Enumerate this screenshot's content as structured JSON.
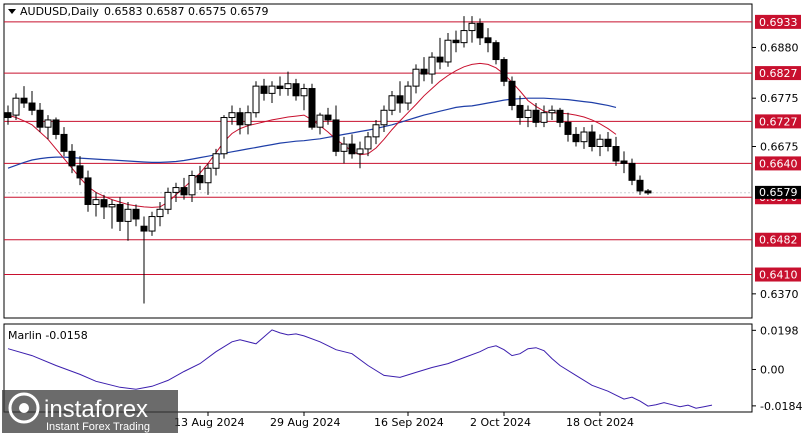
{
  "header": {
    "symbol_title": "AUDUSD,Daily",
    "ohlc": "0.6583 0.6587 0.6575 0.6579"
  },
  "colors": {
    "bull_fill": "#ffffff",
    "bear_fill": "#000000",
    "ma_fast": "#c8102e",
    "ma_slow": "#1f3fa8",
    "level_line": "#c8102e",
    "badge_bg": "#c8102e",
    "marlin_line": "#3c1fae"
  },
  "chart_data": [
    {
      "type": "candlestick",
      "title": "AUDUSD,Daily",
      "ylim": [
        0.632,
        0.697
      ],
      "y_ticks": [
        "0.6880",
        "0.6775",
        "0.6675",
        "0.6370"
      ],
      "x_ticks": [
        "13 Aug 2024",
        "29 Aug 2024",
        "16 Sep 2024",
        "2 Oct 2024",
        "18 Oct 2024"
      ],
      "x_tick_index": [
        25,
        37,
        50,
        62,
        74
      ],
      "levels": [
        {
          "label": "0.6933",
          "value": 0.6933
        },
        {
          "label": "0.6827",
          "value": 0.6827
        },
        {
          "label": "0.6727",
          "value": 0.6727
        },
        {
          "label": "0.6640",
          "value": 0.664
        },
        {
          "label": "0.6570",
          "value": 0.657
        },
        {
          "label": "0.6482",
          "value": 0.6482
        },
        {
          "label": "0.6410",
          "value": 0.641
        }
      ],
      "current_price": {
        "label": "0.6579",
        "value": 0.6579
      },
      "candles": [
        [
          0.6745,
          0.676,
          0.672,
          0.6735
        ],
        [
          0.674,
          0.6785,
          0.673,
          0.6775
        ],
        [
          0.6775,
          0.68,
          0.6755,
          0.6765
        ],
        [
          0.6765,
          0.679,
          0.674,
          0.675
        ],
        [
          0.675,
          0.6765,
          0.6705,
          0.6715
        ],
        [
          0.6715,
          0.674,
          0.669,
          0.673
        ],
        [
          0.673,
          0.6735,
          0.669,
          0.67
        ],
        [
          0.67,
          0.6715,
          0.6655,
          0.6665
        ],
        [
          0.6665,
          0.668,
          0.662,
          0.6635
        ],
        [
          0.6635,
          0.6655,
          0.6595,
          0.661
        ],
        [
          0.661,
          0.6625,
          0.654,
          0.6555
        ],
        [
          0.6555,
          0.658,
          0.653,
          0.6565
        ],
        [
          0.6565,
          0.6575,
          0.6525,
          0.655
        ],
        [
          0.655,
          0.6565,
          0.6505,
          0.6555
        ],
        [
          0.6555,
          0.657,
          0.65,
          0.652
        ],
        [
          0.652,
          0.656,
          0.648,
          0.6545
        ],
        [
          0.6545,
          0.6555,
          0.651,
          0.6525
        ],
        [
          0.651,
          0.653,
          0.635,
          0.65
        ],
        [
          0.65,
          0.654,
          0.649,
          0.653
        ],
        [
          0.653,
          0.656,
          0.651,
          0.6545
        ],
        [
          0.6545,
          0.659,
          0.6535,
          0.658
        ],
        [
          0.658,
          0.66,
          0.656,
          0.659
        ],
        [
          0.659,
          0.661,
          0.6565,
          0.6575
        ],
        [
          0.6575,
          0.6625,
          0.656,
          0.6615
        ],
        [
          0.6615,
          0.6635,
          0.6585,
          0.66
        ],
        [
          0.66,
          0.664,
          0.6575,
          0.663
        ],
        [
          0.663,
          0.667,
          0.6615,
          0.666
        ],
        [
          0.666,
          0.674,
          0.665,
          0.6735
        ],
        [
          0.6735,
          0.676,
          0.672,
          0.6745
        ],
        [
          0.6745,
          0.6755,
          0.67,
          0.672
        ],
        [
          0.672,
          0.676,
          0.67,
          0.6745
        ],
        [
          0.6745,
          0.681,
          0.6735,
          0.68
        ],
        [
          0.68,
          0.6815,
          0.677,
          0.6785
        ],
        [
          0.6785,
          0.681,
          0.6765,
          0.68
        ],
        [
          0.68,
          0.682,
          0.678,
          0.6795
        ],
        [
          0.6795,
          0.683,
          0.678,
          0.6805
        ],
        [
          0.6805,
          0.6815,
          0.677,
          0.678
        ],
        [
          0.678,
          0.6805,
          0.675,
          0.6795
        ],
        [
          0.6795,
          0.6805,
          0.671,
          0.6715
        ],
        [
          0.6715,
          0.6745,
          0.67,
          0.674
        ],
        [
          0.674,
          0.6755,
          0.672,
          0.673
        ],
        [
          0.673,
          0.676,
          0.6655,
          0.6665
        ],
        [
          0.6665,
          0.6695,
          0.664,
          0.668
        ],
        [
          0.668,
          0.67,
          0.665,
          0.666
        ],
        [
          0.666,
          0.6685,
          0.663,
          0.667
        ],
        [
          0.667,
          0.6705,
          0.6655,
          0.6695
        ],
        [
          0.6695,
          0.673,
          0.668,
          0.672
        ],
        [
          0.672,
          0.676,
          0.6705,
          0.675
        ],
        [
          0.675,
          0.679,
          0.674,
          0.678
        ],
        [
          0.678,
          0.681,
          0.6745,
          0.6765
        ],
        [
          0.6765,
          0.681,
          0.675,
          0.68
        ],
        [
          0.68,
          0.6845,
          0.6785,
          0.6835
        ],
        [
          0.6835,
          0.686,
          0.681,
          0.6825
        ],
        [
          0.6825,
          0.687,
          0.6805,
          0.686
        ],
        [
          0.686,
          0.69,
          0.6835,
          0.685
        ],
        [
          0.685,
          0.691,
          0.684,
          0.6895
        ],
        [
          0.6895,
          0.6915,
          0.687,
          0.689
        ],
        [
          0.689,
          0.6945,
          0.688,
          0.6915
        ],
        [
          0.6915,
          0.6945,
          0.689,
          0.693
        ],
        [
          0.693,
          0.694,
          0.6885,
          0.69
        ],
        [
          0.69,
          0.692,
          0.687,
          0.689
        ],
        [
          0.689,
          0.6895,
          0.6845,
          0.6855
        ],
        [
          0.6855,
          0.686,
          0.68,
          0.681
        ],
        [
          0.681,
          0.682,
          0.675,
          0.676
        ],
        [
          0.676,
          0.678,
          0.672,
          0.6735
        ],
        [
          0.6735,
          0.676,
          0.6715,
          0.675
        ],
        [
          0.675,
          0.6765,
          0.6715,
          0.6725
        ],
        [
          0.6725,
          0.676,
          0.6715,
          0.6745
        ],
        [
          0.6745,
          0.676,
          0.673,
          0.675
        ],
        [
          0.675,
          0.6755,
          0.6715,
          0.6725
        ],
        [
          0.6725,
          0.6745,
          0.6685,
          0.67
        ],
        [
          0.67,
          0.6715,
          0.6675,
          0.6685
        ],
        [
          0.6685,
          0.6715,
          0.667,
          0.6705
        ],
        [
          0.6705,
          0.672,
          0.6665,
          0.6675
        ],
        [
          0.6675,
          0.67,
          0.6655,
          0.669
        ],
        [
          0.669,
          0.6705,
          0.6665,
          0.6675
        ],
        [
          0.6675,
          0.6695,
          0.6635,
          0.6645
        ],
        [
          0.6645,
          0.6665,
          0.662,
          0.664
        ],
        [
          0.664,
          0.665,
          0.6595,
          0.6605
        ],
        [
          0.6605,
          0.6615,
          0.6575,
          0.6583
        ],
        [
          0.6583,
          0.6587,
          0.6575,
          0.6579
        ]
      ],
      "ma_fast": [
        0.674,
        0.6735,
        0.6728,
        0.672,
        0.6705,
        0.669,
        0.667,
        0.665,
        0.663,
        0.661,
        0.6592,
        0.658,
        0.6572,
        0.6565,
        0.656,
        0.6555,
        0.6552,
        0.655,
        0.6549,
        0.655,
        0.656,
        0.6575,
        0.659,
        0.6605,
        0.662,
        0.664,
        0.6662,
        0.6685,
        0.6702,
        0.6712,
        0.6718,
        0.6722,
        0.6726,
        0.673,
        0.6733,
        0.6736,
        0.6738,
        0.674,
        0.673,
        0.6718,
        0.6705,
        0.669,
        0.6678,
        0.6665,
        0.6658,
        0.666,
        0.6672,
        0.669,
        0.671,
        0.6728,
        0.6745,
        0.6762,
        0.678,
        0.6795,
        0.681,
        0.6822,
        0.6832,
        0.684,
        0.6845,
        0.6847,
        0.6845,
        0.6838,
        0.6825,
        0.6808,
        0.679,
        0.677,
        0.6758,
        0.6748,
        0.6745,
        0.6744,
        0.6743,
        0.674,
        0.6736,
        0.673,
        0.6722,
        0.6712,
        0.67
      ],
      "ma_slow": [
        0.663,
        0.6636,
        0.6642,
        0.6647,
        0.665,
        0.6652,
        0.6653,
        0.6653,
        0.6652,
        0.6651,
        0.665,
        0.6649,
        0.6648,
        0.6647,
        0.6646,
        0.6645,
        0.6644,
        0.6643,
        0.6642,
        0.6642,
        0.6643,
        0.6644,
        0.6646,
        0.6649,
        0.6652,
        0.6655,
        0.6658,
        0.6661,
        0.6664,
        0.6667,
        0.667,
        0.6673,
        0.6676,
        0.6679,
        0.6682,
        0.6684,
        0.6686,
        0.6687,
        0.6689,
        0.6691,
        0.6694,
        0.6697,
        0.67,
        0.6703,
        0.6706,
        0.6709,
        0.6712,
        0.6716,
        0.672,
        0.6725,
        0.673,
        0.6735,
        0.674,
        0.6744,
        0.6748,
        0.6752,
        0.6756,
        0.6758,
        0.6759,
        0.6762,
        0.6765,
        0.6768,
        0.6771,
        0.6773,
        0.6774,
        0.6775,
        0.6775,
        0.6775,
        0.6774,
        0.6773,
        0.6772,
        0.677,
        0.6768,
        0.6766,
        0.6763,
        0.676,
        0.6756
      ]
    },
    {
      "type": "line",
      "title": "Marlin -0.0158",
      "ylim": [
        -0.0215,
        0.023
      ],
      "y_ticks": [
        "0.0198",
        "0.00",
        "-0.0184"
      ],
      "y_tick_values": [
        0.0198,
        0.0,
        -0.0184
      ],
      "values": [
        0.0105,
        0.0095,
        0.0085,
        0.007,
        0.0055,
        0.004,
        0.002,
        0.0005,
        -0.001,
        -0.0025,
        -0.0045,
        -0.006,
        -0.007,
        -0.008,
        -0.009,
        -0.0095,
        -0.01,
        -0.0095,
        -0.0085,
        -0.007,
        -0.0055,
        -0.003,
        -0.001,
        0.001,
        0.003,
        0.006,
        0.009,
        0.012,
        0.014,
        0.015,
        0.0145,
        0.013,
        0.0165,
        0.02,
        0.0185,
        0.0175,
        0.018,
        0.017,
        0.016,
        0.014,
        0.012,
        0.01,
        0.009,
        0.008,
        0.005,
        0.002,
        -0.001,
        -0.003,
        -0.0035,
        -0.004,
        -0.003,
        -0.0015,
        0.0,
        0.001,
        0.002,
        0.003,
        0.0045,
        0.006,
        0.0075,
        0.009,
        0.011,
        0.012,
        0.01,
        0.007,
        0.008,
        0.0105,
        0.011,
        0.0095,
        0.0055,
        0.002,
        -0.0005,
        -0.003,
        -0.006,
        -0.008,
        -0.0095,
        -0.011,
        -0.013,
        -0.015
      ]
    }
  ],
  "marlin_points": [
    [
      0,
      0.0105
    ],
    [
      3,
      0.007
    ],
    [
      6,
      0.002
    ],
    [
      9,
      -0.0025
    ],
    [
      11,
      -0.006
    ],
    [
      14,
      -0.009
    ],
    [
      16,
      -0.01
    ],
    [
      18,
      -0.0085
    ],
    [
      20,
      -0.0055
    ],
    [
      22,
      -0.001
    ],
    [
      24,
      0.003
    ],
    [
      26,
      0.009
    ],
    [
      28,
      0.014
    ],
    [
      29,
      0.015
    ],
    [
      31,
      0.013
    ],
    [
      32,
      0.0165
    ],
    [
      33,
      0.02
    ],
    [
      34,
      0.0185
    ],
    [
      35,
      0.0175
    ],
    [
      36,
      0.018
    ],
    [
      37,
      0.017
    ],
    [
      39,
      0.014
    ],
    [
      41,
      0.01
    ],
    [
      43,
      0.008
    ],
    [
      45,
      0.002
    ],
    [
      47,
      -0.003
    ],
    [
      49,
      -0.004
    ],
    [
      51,
      -0.0015
    ],
    [
      53,
      0.001
    ],
    [
      55,
      0.003
    ],
    [
      57,
      0.006
    ],
    [
      59,
      0.009
    ],
    [
      60,
      0.011
    ],
    [
      61,
      0.012
    ],
    [
      62,
      0.01
    ],
    [
      63,
      0.007
    ],
    [
      64,
      0.008
    ],
    [
      65,
      0.0105
    ],
    [
      66,
      0.011
    ],
    [
      67,
      0.0095
    ],
    [
      68,
      0.0055
    ],
    [
      69,
      0.002
    ],
    [
      71,
      -0.003
    ],
    [
      73,
      -0.008
    ],
    [
      75,
      -0.011
    ],
    [
      76,
      -0.013
    ],
    [
      77,
      -0.015
    ],
    [
      78,
      -0.014
    ],
    [
      79,
      -0.016
    ],
    [
      80,
      -0.0185
    ],
    [
      81,
      -0.0178
    ],
    [
      82,
      -0.0168
    ],
    [
      83,
      -0.0178
    ],
    [
      84,
      -0.0188
    ],
    [
      85,
      -0.018
    ],
    [
      86,
      -0.0196
    ],
    [
      87,
      -0.0188
    ],
    [
      88,
      -0.018
    ]
  ],
  "watermark": {
    "brand": "instaforex",
    "tagline": "Instant Forex Trading"
  }
}
